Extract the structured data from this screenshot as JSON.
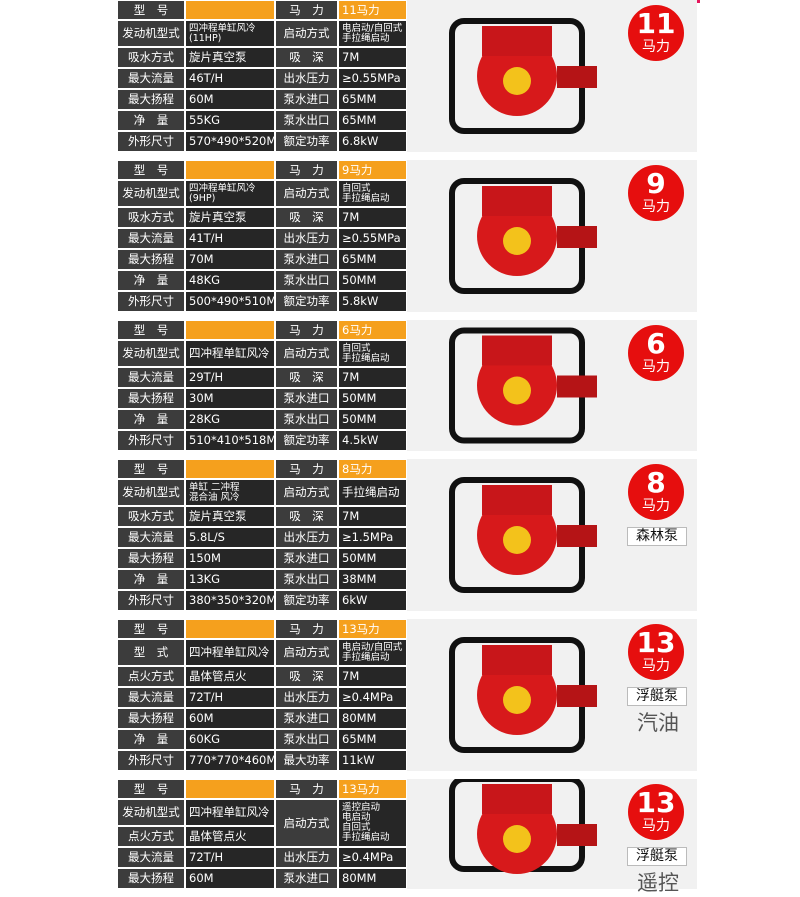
{
  "blocks": [
    {
      "rows": [
        [
          "型　号",
          null,
          "马　力",
          "11马力"
        ],
        [
          "发动机型式",
          "四冲程单缸风冷\n(11HP)",
          "启动方式",
          "电启动/自回式\n手拉绳启动"
        ],
        [
          "吸水方式",
          "旋片真空泵",
          "吸　深",
          "7M"
        ],
        [
          "最大流量",
          "46T/H",
          "出水压力",
          "≥0.55MPa"
        ],
        [
          "最大扬程",
          "60M",
          "泵水进口",
          "65MM"
        ],
        [
          "净　量",
          "55KG",
          "泵水出口",
          "65MM"
        ],
        [
          "外形尺寸",
          "570*490*520MM",
          "额定功率",
          "6.8kW"
        ]
      ],
      "badge": {
        "number": "11",
        "unit": "马力"
      },
      "tags": []
    },
    {
      "rows": [
        [
          "型　号",
          null,
          "马　力",
          "9马力"
        ],
        [
          "发动机型式",
          "四冲程单缸风冷\n(9HP)",
          "启动方式",
          "自回式\n手拉绳启动"
        ],
        [
          "吸水方式",
          "旋片真空泵",
          "吸　深",
          "7M"
        ],
        [
          "最大流量",
          "41T/H",
          "出水压力",
          "≥0.55MPa"
        ],
        [
          "最大扬程",
          "70M",
          "泵水进口",
          "65MM"
        ],
        [
          "净　量",
          "48KG",
          "泵水出口",
          "50MM"
        ],
        [
          "外形尺寸",
          "500*490*510MM",
          "额定功率",
          "5.8kW"
        ]
      ],
      "badge": {
        "number": "9",
        "unit": "马力"
      },
      "tags": []
    },
    {
      "rows": [
        [
          "型　号",
          null,
          "马　力",
          "6马力"
        ],
        [
          "发动机型式",
          "四冲程单缸风冷",
          "启动方式",
          "自回式\n手拉绳启动"
        ],
        [
          "最大流量",
          "29T/H",
          "吸　深",
          "7M"
        ],
        [
          "最大扬程",
          "30M",
          "泵水进口",
          "50MM"
        ],
        [
          "净　量",
          "28KG",
          "泵水出口",
          "50MM"
        ],
        [
          "外形尺寸",
          "510*410*518MM",
          "额定功率",
          "4.5kW"
        ]
      ],
      "badge": {
        "number": "6",
        "unit": "马力"
      },
      "tags": []
    },
    {
      "rows": [
        [
          "型　号",
          null,
          "马　力",
          "8马力"
        ],
        [
          "发动机型式",
          "单缸 二冲程\n混合油 风冷",
          "启动方式",
          "手拉绳启动"
        ],
        [
          "吸水方式",
          "旋片真空泵",
          "吸　深",
          "7M"
        ],
        [
          "最大流量",
          "5.8L/S",
          "出水压力",
          "≥1.5MPa"
        ],
        [
          "最大扬程",
          "150M",
          "泵水进口",
          "50MM"
        ],
        [
          "净　量",
          "13KG",
          "泵水出口",
          "38MM"
        ],
        [
          "外形尺寸",
          "380*350*320MM",
          "额定功率",
          "6kW"
        ]
      ],
      "badge": {
        "number": "8",
        "unit": "马力"
      },
      "tags": [
        "森林泵"
      ]
    },
    {
      "rows": [
        [
          "型　号",
          null,
          "马　力",
          "13马力"
        ],
        [
          "型　式",
          "四冲程单缸风冷",
          "启动方式",
          "电启动/自回式\n手拉绳启动"
        ],
        [
          "点火方式",
          "晶体管点火",
          "吸　深",
          "7M"
        ],
        [
          "最大流量",
          "72T/H",
          "出水压力",
          "≥0.4MPa"
        ],
        [
          "最大扬程",
          "60M",
          "泵水进口",
          "80MM"
        ],
        [
          "净　量",
          "60KG",
          "泵水出口",
          "65MM"
        ],
        [
          "外形尺寸",
          "770*770*460MM",
          "最大功率",
          "11kW"
        ]
      ],
      "badge": {
        "number": "13",
        "unit": "马力"
      },
      "tags": [
        "浮艇泵",
        "汽油"
      ]
    },
    {
      "rows": [
        [
          "型　号",
          null,
          "马　力",
          "13马力"
        ],
        [
          "发动机型式",
          "四冲程单缸风冷",
          "启动方式",
          "遥控启动\n电启动\n自回式\n手拉绳启动"
        ],
        [
          "点火方式",
          "晶体管点火",
          null,
          null
        ],
        [
          "最大流量",
          "72T/H",
          "出水压力",
          "≥0.4MPa"
        ],
        [
          "最大扬程",
          "60M",
          "泵水进口",
          "80MM"
        ]
      ],
      "badge": {
        "number": "13",
        "unit": "马力"
      },
      "tags": [
        "浮艇泵",
        "遥控"
      ]
    }
  ]
}
